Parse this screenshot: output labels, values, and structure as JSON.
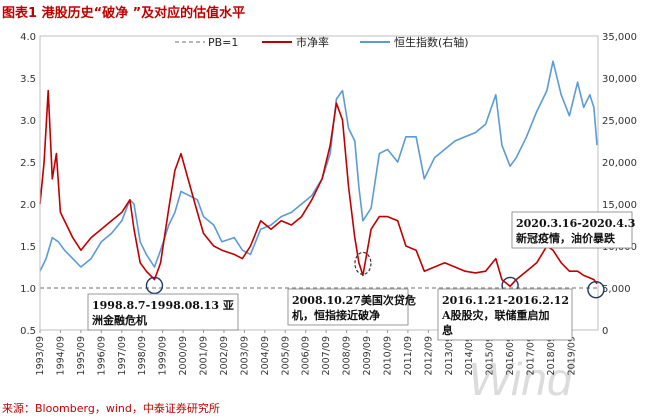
{
  "header": {
    "title": "图表1 港股历史“破净 ”及对应的估值水平"
  },
  "footer": {
    "source": "来源：Bloomberg，wind，中泰证券研究所"
  },
  "watermark": "Wind",
  "colors": {
    "pb": "#c00000",
    "hsi": "#5b9bd5",
    "ref": "#8c8c8c",
    "title": "#c00000",
    "grid": "#d0d0d0"
  },
  "chart_data": {
    "type": "line",
    "title": "港股历史“破净 ”及对应的估值水平",
    "x_labels": [
      "1993/09",
      "1994/09",
      "1995/09",
      "1996/09",
      "1997/09",
      "1998/09",
      "1999/09",
      "2000/09",
      "2001/09",
      "2002/09",
      "2003/09",
      "2004/09",
      "2005/09",
      "2006/09",
      "2007/09",
      "2008/09",
      "2009/09",
      "2010/09",
      "2011/09",
      "2012/09",
      "2013/09",
      "2014/09",
      "2015/09",
      "2016/09",
      "2017/09",
      "2018/09",
      "2019/09"
    ],
    "x_range": [
      1993.0,
      2020.3
    ],
    "y_left": {
      "range": [
        0.5,
        4.0
      ],
      "ticks": [
        "0.5",
        "1.0",
        "1.5",
        "2.0",
        "2.5",
        "3.0",
        "3.5",
        "4.0"
      ]
    },
    "y_right": {
      "range": [
        0,
        35000
      ],
      "ticks": [
        "0",
        "5,000",
        "10,000",
        "15,000",
        "20,000",
        "25,000",
        "30,000",
        "35,000"
      ]
    },
    "series": [
      {
        "name": "市净率",
        "axis": "left",
        "x": [
          1993.0,
          1993.2,
          1993.4,
          1993.6,
          1993.8,
          1994.0,
          1994.3,
          1994.6,
          1995.0,
          1995.5,
          1996.0,
          1996.5,
          1997.0,
          1997.4,
          1997.6,
          1997.9,
          1998.2,
          1998.6,
          1998.9,
          1999.3,
          1999.6,
          1999.9,
          2000.3,
          2000.7,
          2001.0,
          2001.5,
          2001.9,
          2002.5,
          2002.9,
          2003.3,
          2003.8,
          2004.3,
          2004.8,
          2005.3,
          2005.8,
          2006.3,
          2006.8,
          2007.2,
          2007.5,
          2007.8,
          2008.1,
          2008.4,
          2008.6,
          2008.8,
          2009.2,
          2009.6,
          2010.0,
          2010.5,
          2010.9,
          2011.4,
          2011.8,
          2012.3,
          2012.8,
          2013.3,
          2013.8,
          2014.3,
          2014.8,
          2015.3,
          2015.6,
          2016.0,
          2016.3,
          2016.8,
          2017.3,
          2017.8,
          2018.1,
          2018.5,
          2018.9,
          2019.3,
          2019.6,
          2019.9,
          2020.1,
          2020.25
        ],
        "values": [
          2.0,
          2.5,
          3.35,
          2.3,
          2.6,
          1.9,
          1.75,
          1.6,
          1.45,
          1.6,
          1.7,
          1.8,
          1.9,
          2.05,
          1.7,
          1.3,
          1.2,
          1.1,
          1.3,
          1.95,
          2.4,
          2.6,
          2.25,
          1.9,
          1.65,
          1.5,
          1.45,
          1.4,
          1.35,
          1.5,
          1.8,
          1.7,
          1.8,
          1.75,
          1.85,
          2.05,
          2.3,
          2.7,
          3.2,
          3.0,
          2.2,
          1.6,
          1.3,
          1.15,
          1.7,
          1.85,
          1.85,
          1.8,
          1.5,
          1.45,
          1.2,
          1.25,
          1.3,
          1.25,
          1.2,
          1.18,
          1.2,
          1.35,
          1.1,
          1.02,
          1.1,
          1.2,
          1.3,
          1.5,
          1.45,
          1.3,
          1.2,
          1.2,
          1.15,
          1.12,
          1.1,
          1.05
        ]
      },
      {
        "name": "恒生指数(右轴)",
        "axis": "right",
        "x": [
          1993.0,
          1993.3,
          1993.6,
          1993.9,
          1994.2,
          1994.6,
          1995.0,
          1995.5,
          1996.0,
          1996.5,
          1997.0,
          1997.4,
          1997.6,
          1997.9,
          1998.2,
          1998.6,
          1998.9,
          1999.3,
          1999.6,
          1999.9,
          2000.3,
          2000.7,
          2001.0,
          2001.5,
          2001.9,
          2002.5,
          2002.9,
          2003.3,
          2003.8,
          2004.3,
          2004.8,
          2005.3,
          2005.8,
          2006.3,
          2006.8,
          2007.2,
          2007.5,
          2007.8,
          2008.1,
          2008.4,
          2008.6,
          2008.8,
          2009.2,
          2009.6,
          2010.0,
          2010.5,
          2010.9,
          2011.4,
          2011.8,
          2012.3,
          2012.8,
          2013.3,
          2013.8,
          2014.3,
          2014.8,
          2015.3,
          2015.6,
          2016.0,
          2016.3,
          2016.8,
          2017.3,
          2017.8,
          2018.1,
          2018.5,
          2018.9,
          2019.3,
          2019.6,
          2019.9,
          2020.1,
          2020.25
        ],
        "values": [
          7000,
          8500,
          11000,
          10500,
          9500,
          8500,
          7500,
          8500,
          10500,
          11500,
          13000,
          15500,
          15000,
          10500,
          9000,
          7500,
          9500,
          12500,
          14000,
          16500,
          16000,
          15500,
          13500,
          12500,
          10500,
          11000,
          9500,
          9000,
          12000,
          12500,
          13500,
          14000,
          15000,
          16000,
          18000,
          21000,
          27500,
          28500,
          24000,
          22500,
          17000,
          13000,
          14500,
          21000,
          21500,
          20000,
          23000,
          23000,
          18000,
          20500,
          21500,
          22500,
          23000,
          23500,
          24500,
          28000,
          22000,
          19500,
          20500,
          23000,
          26000,
          28500,
          32000,
          28000,
          25500,
          29500,
          26500,
          28000,
          26500,
          22000
        ]
      }
    ],
    "reference_line": {
      "name": "PB=1",
      "value": 1.0,
      "axis": "left"
    },
    "legend": {
      "position": "top",
      "entries": [
        "PB=1",
        "市净率",
        "恒生指数(右轴)"
      ]
    },
    "annotations": [
      {
        "lines": [
          "1998.8.7-1998.08.13 亚",
          "洲金融危机"
        ],
        "x": 1998.6,
        "y": 1.03
      },
      {
        "lines": [
          "2008.10.27美国次贷危",
          "机，恒指接近破净"
        ],
        "x": 2008.8,
        "y": 1.15
      },
      {
        "lines": [
          "2016.1.21-2016.2.12",
          "A股股灾，联储重启加",
          "息"
        ],
        "x": 2016.0,
        "y": 1.03
      },
      {
        "lines": [
          "2020.3.16-2020.4.3",
          "新冠疫情，油价暴跌"
        ],
        "x": 2020.2,
        "y": 0.98
      }
    ]
  }
}
